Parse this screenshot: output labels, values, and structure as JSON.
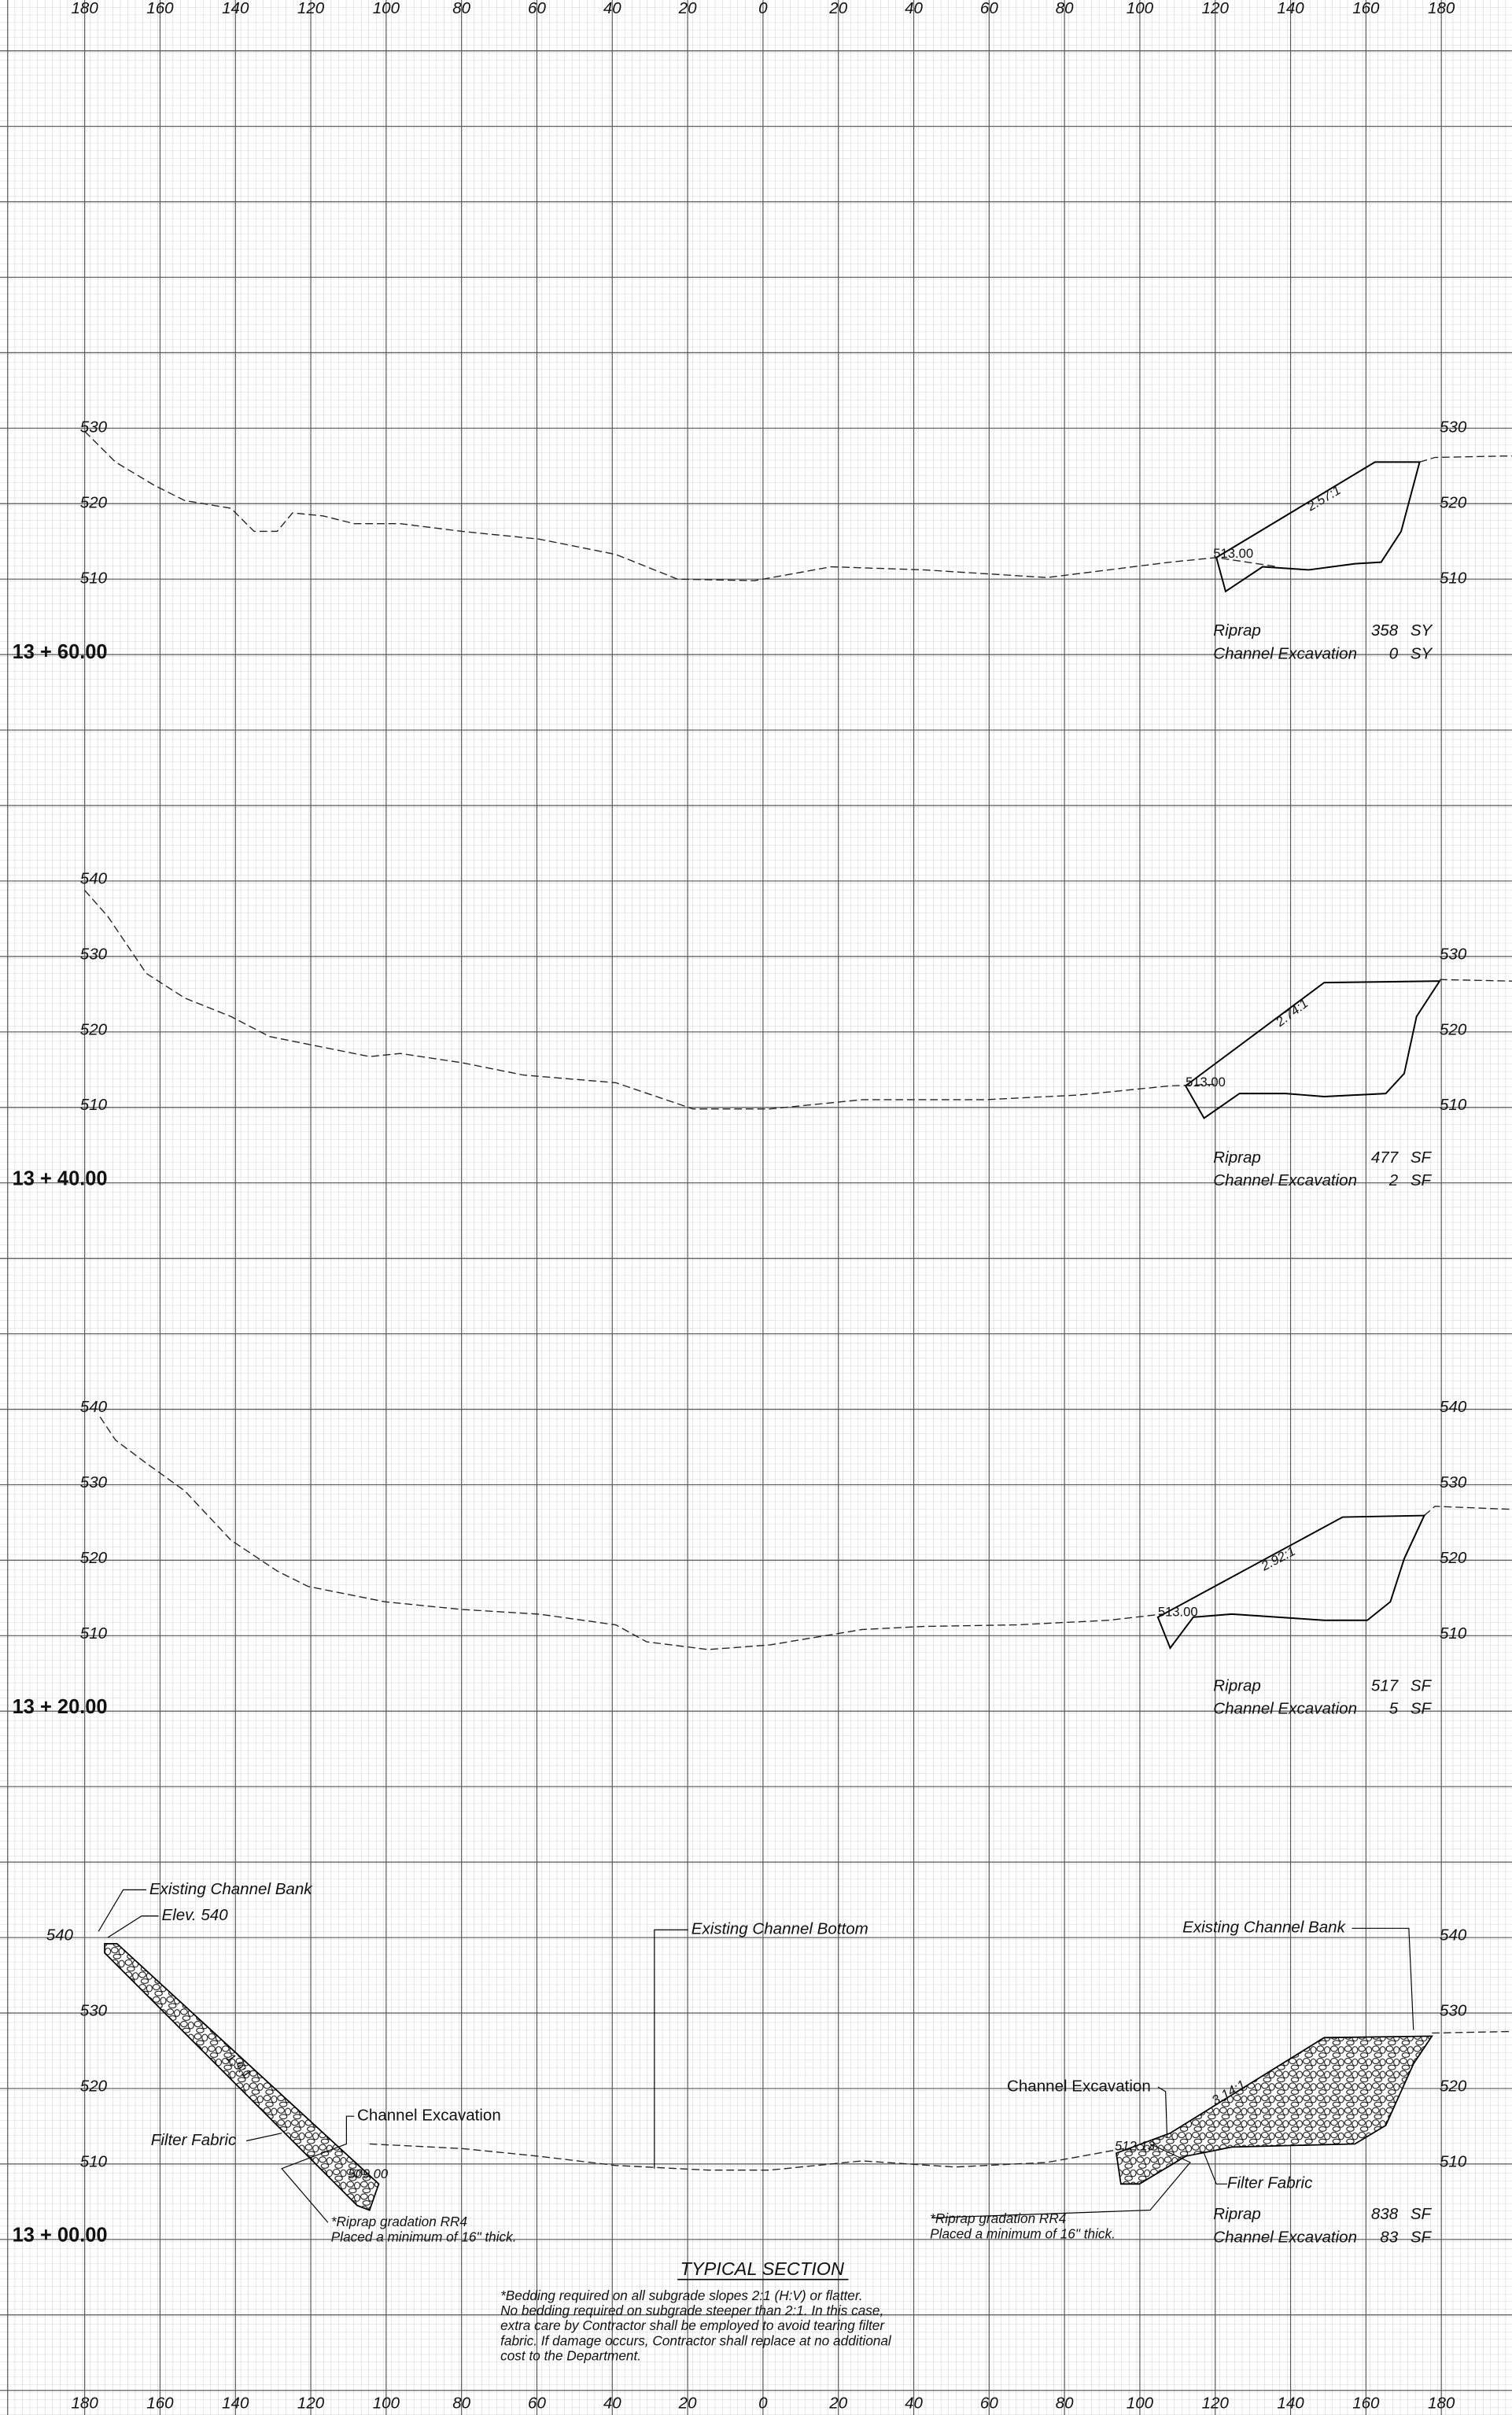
{
  "axis_top": [
    "180",
    "160",
    "140",
    "120",
    "100",
    "80",
    "60",
    "40",
    "20",
    "0",
    "20",
    "40",
    "60",
    "80",
    "100",
    "120",
    "140",
    "160",
    "180"
  ],
  "axis_bottom": [
    "180",
    "160",
    "140",
    "120",
    "100",
    "80",
    "60",
    "40",
    "20",
    "0",
    "20",
    "40",
    "60",
    "80",
    "100",
    "120",
    "140",
    "160",
    "180"
  ],
  "sections": [
    {
      "station": "13 + 60.00",
      "left_elevations": [
        "530",
        "520",
        "510"
      ],
      "right_elevations": [
        "530",
        "520",
        "510"
      ],
      "slope": "2.57:1",
      "elevation": "513.00",
      "quantities": [
        {
          "item": "Riprap",
          "value": "358",
          "unit": "SY"
        },
        {
          "item": "Channel Excavation",
          "value": "0",
          "unit": "SY"
        }
      ]
    },
    {
      "station": "13 + 40.00",
      "left_elevations": [
        "540",
        "530",
        "520",
        "510"
      ],
      "right_elevations": [
        "530",
        "520",
        "510"
      ],
      "slope": "2.74:1",
      "elevation": "513.00",
      "quantities": [
        {
          "item": "Riprap",
          "value": "477",
          "unit": "SF"
        },
        {
          "item": "Channel Excavation",
          "value": "2",
          "unit": "SF"
        }
      ]
    },
    {
      "station": "13 + 20.00",
      "left_elevations": [
        "540",
        "530",
        "520",
        "510"
      ],
      "right_elevations": [
        "540",
        "530",
        "520",
        "510"
      ],
      "slope": "2.92:1",
      "elevation": "513.00",
      "quantities": [
        {
          "item": "Riprap",
          "value": "517",
          "unit": "SF"
        },
        {
          "item": "Channel Excavation",
          "value": "5",
          "unit": "SF"
        }
      ]
    },
    {
      "station": "13 + 00.00",
      "left_elevations": [
        "540",
        "530",
        "520",
        "510"
      ],
      "right_elevations": [
        "540",
        "530",
        "520",
        "510"
      ],
      "quantities": [
        {
          "item": "Riprap",
          "value": "838",
          "unit": "SF"
        },
        {
          "item": "Channel Excavation",
          "value": "83",
          "unit": "SF"
        }
      ]
    }
  ],
  "typical_section": {
    "title": "TYPICAL SECTION",
    "existing_bank_left": "Existing Channel Bank",
    "elev_540": "Elev. 540",
    "existing_bottom": "Existing Channel Bottom",
    "existing_bank_right": "Existing Channel Bank",
    "channel_excavation_left": "Channel Excavation",
    "channel_excavation_right": "Channel Excavation",
    "filter_fabric_left": "Filter Fabric",
    "filter_fabric_right": "Filter Fabric",
    "slope_left": "1.9:1",
    "slope_right": "3.14:1",
    "elev_left": "509.00",
    "elev_right": "512.13",
    "riprap_note_left": [
      "*Riprap gradation RR4",
      "Placed a minimum of 16\" thick."
    ],
    "riprap_note_right": [
      "*Riprap gradation RR4",
      "Placed a minimum of 16\" thick."
    ],
    "notes": [
      "*Bedding required on all subgrade slopes 2:1 (H:V) or flatter.",
      "No bedding required on subgrade steeper than 2:1. In this case,",
      "extra care by Contractor shall be employed to avoid tearing filter",
      "fabric. If damage occurs, Contractor shall replace at no additional",
      "cost to the Department."
    ]
  }
}
